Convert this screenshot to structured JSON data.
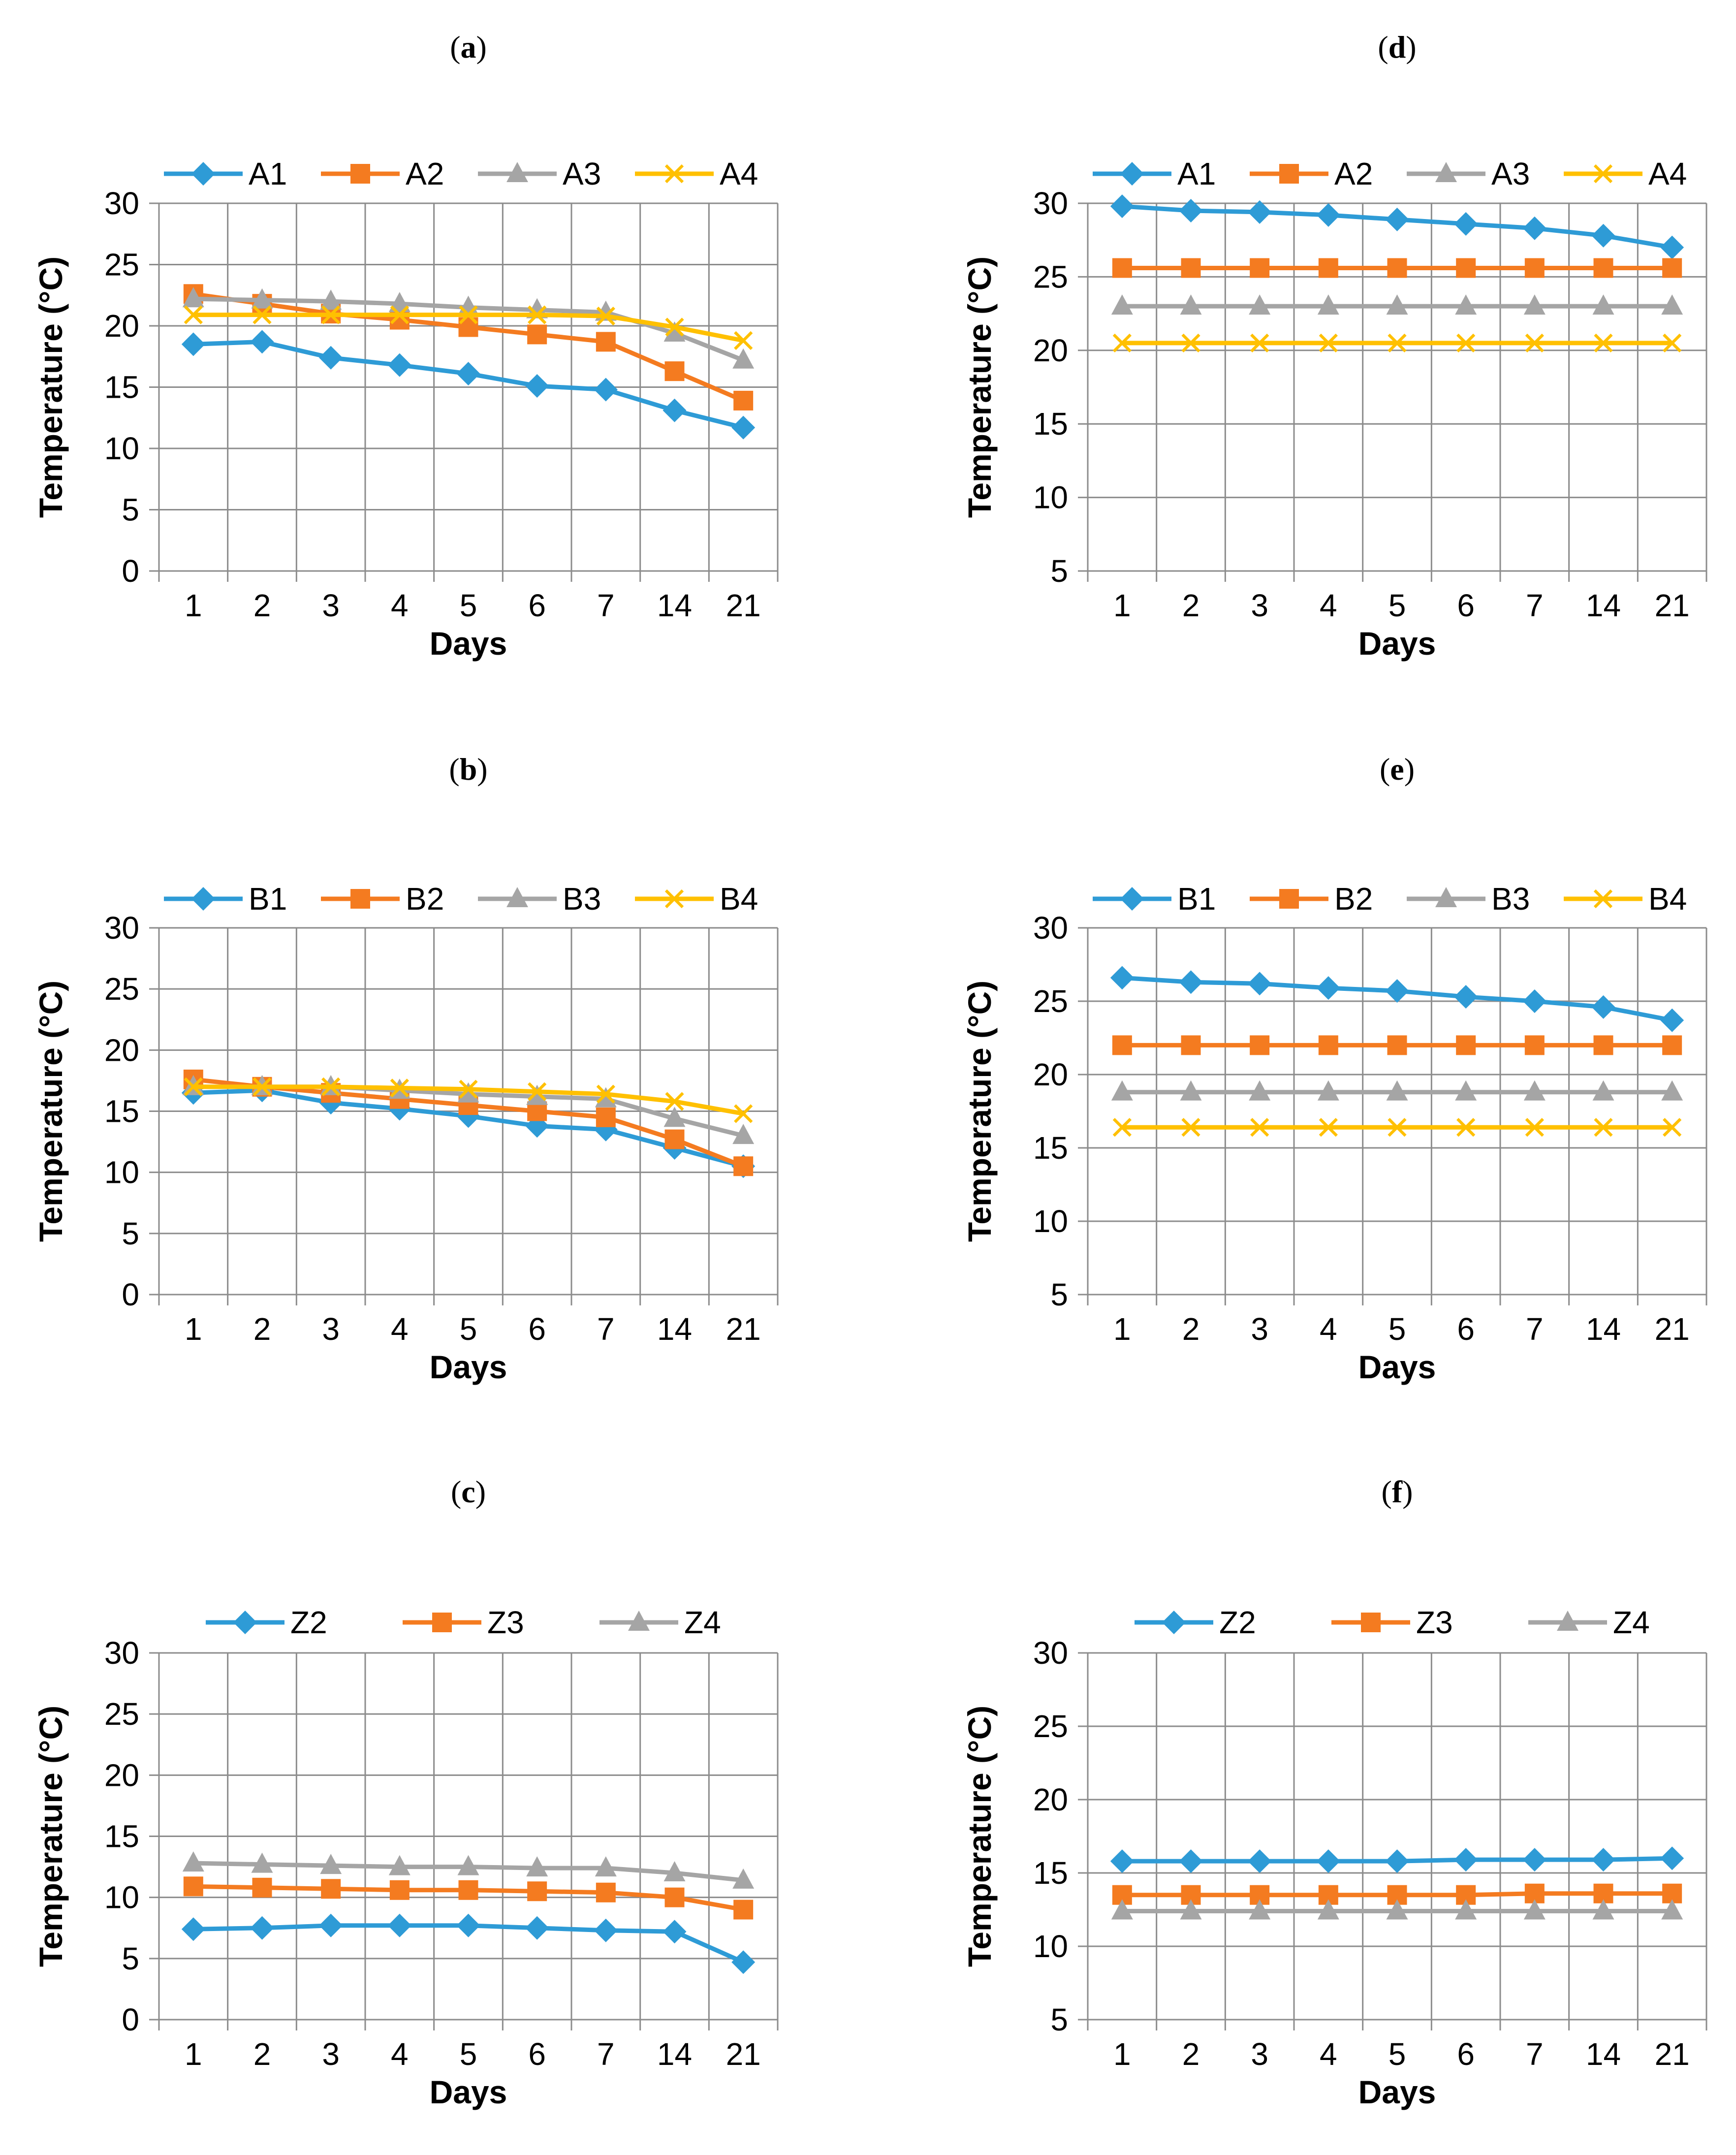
{
  "chart_data": [
    {
      "id": "a",
      "type": "line",
      "panel_label": "a",
      "categories": [
        "1",
        "2",
        "3",
        "4",
        "5",
        "6",
        "7",
        "14",
        "21"
      ],
      "series": [
        {
          "name": "A1",
          "marker": "diamond",
          "color": "#2e9bd6",
          "values": [
            18.5,
            18.7,
            17.4,
            16.8,
            16.1,
            15.1,
            14.8,
            13.1,
            11.7
          ]
        },
        {
          "name": "A2",
          "marker": "square",
          "color": "#f47b20",
          "values": [
            22.6,
            21.8,
            21.0,
            20.5,
            19.9,
            19.3,
            18.7,
            16.3,
            13.9
          ]
        },
        {
          "name": "A3",
          "marker": "triangle",
          "color": "#a5a5a5",
          "values": [
            22.2,
            22.1,
            22.0,
            21.8,
            21.5,
            21.3,
            21.1,
            19.4,
            17.2
          ]
        },
        {
          "name": "A4",
          "marker": "x",
          "color": "#ffc000",
          "values": [
            20.9,
            20.9,
            20.9,
            20.9,
            20.9,
            20.9,
            20.8,
            19.9,
            18.8
          ]
        }
      ],
      "xlabel": "Days",
      "ylabel": "Temperature (°C)",
      "ylim": [
        0,
        30
      ],
      "yticks": [
        0,
        5,
        10,
        15,
        20,
        25,
        30
      ],
      "grid": true,
      "legend": "top"
    },
    {
      "id": "b",
      "type": "line",
      "panel_label": "b",
      "categories": [
        "1",
        "2",
        "3",
        "4",
        "5",
        "6",
        "7",
        "14",
        "21"
      ],
      "series": [
        {
          "name": "B1",
          "marker": "diamond",
          "color": "#2e9bd6",
          "values": [
            16.5,
            16.7,
            15.7,
            15.2,
            14.6,
            13.8,
            13.5,
            12.0,
            10.5
          ]
        },
        {
          "name": "B2",
          "marker": "square",
          "color": "#f47b20",
          "values": [
            17.6,
            17.0,
            16.5,
            16.0,
            15.5,
            15.0,
            14.5,
            12.7,
            10.5
          ]
        },
        {
          "name": "B3",
          "marker": "triangle",
          "color": "#a5a5a5",
          "values": [
            17.0,
            17.0,
            17.0,
            16.7,
            16.4,
            16.2,
            16.0,
            14.4,
            13.0
          ]
        },
        {
          "name": "B4",
          "marker": "x",
          "color": "#ffc000",
          "values": [
            17.0,
            17.0,
            17.0,
            16.9,
            16.8,
            16.6,
            16.4,
            15.8,
            14.8
          ]
        }
      ],
      "xlabel": "Days",
      "ylabel": "Temperature (°C)",
      "ylim": [
        0,
        30
      ],
      "yticks": [
        0,
        5,
        10,
        15,
        20,
        25,
        30
      ],
      "grid": true,
      "legend": "top"
    },
    {
      "id": "c",
      "type": "line",
      "panel_label": "c",
      "categories": [
        "1",
        "2",
        "3",
        "4",
        "5",
        "6",
        "7",
        "14",
        "21"
      ],
      "series": [
        {
          "name": "Z2",
          "marker": "diamond",
          "color": "#2e9bd6",
          "values": [
            7.4,
            7.5,
            7.7,
            7.7,
            7.7,
            7.5,
            7.3,
            7.2,
            4.7
          ]
        },
        {
          "name": "Z3",
          "marker": "square",
          "color": "#f47b20",
          "values": [
            10.9,
            10.8,
            10.7,
            10.6,
            10.6,
            10.5,
            10.4,
            10.0,
            9.0
          ]
        },
        {
          "name": "Z4",
          "marker": "triangle",
          "color": "#a5a5a5",
          "values": [
            12.8,
            12.7,
            12.6,
            12.5,
            12.5,
            12.4,
            12.4,
            12.0,
            11.4
          ]
        }
      ],
      "xlabel": "Days",
      "ylabel": "Temperature (°C)",
      "ylim": [
        0,
        30
      ],
      "yticks": [
        0,
        5,
        10,
        15,
        20,
        25,
        30
      ],
      "grid": true,
      "legend": "top"
    },
    {
      "id": "d",
      "type": "line",
      "panel_label": "d",
      "categories": [
        "1",
        "2",
        "3",
        "4",
        "5",
        "6",
        "7",
        "14",
        "21"
      ],
      "series": [
        {
          "name": "A1",
          "marker": "diamond",
          "color": "#2e9bd6",
          "values": [
            29.8,
            29.5,
            29.4,
            29.2,
            28.9,
            28.6,
            28.3,
            27.8,
            27.0
          ]
        },
        {
          "name": "A2",
          "marker": "square",
          "color": "#f47b20",
          "values": [
            25.6,
            25.6,
            25.6,
            25.6,
            25.6,
            25.6,
            25.6,
            25.6,
            25.6
          ]
        },
        {
          "name": "A3",
          "marker": "triangle",
          "color": "#a5a5a5",
          "values": [
            23.0,
            23.0,
            23.0,
            23.0,
            23.0,
            23.0,
            23.0,
            23.0,
            23.0
          ]
        },
        {
          "name": "A4",
          "marker": "x",
          "color": "#ffc000",
          "values": [
            20.5,
            20.5,
            20.5,
            20.5,
            20.5,
            20.5,
            20.5,
            20.5,
            20.5
          ]
        }
      ],
      "xlabel": "Days",
      "ylabel": "Temperature (°C)",
      "ylim": [
        5,
        30
      ],
      "yticks": [
        5,
        10,
        15,
        20,
        25,
        30
      ],
      "grid": true,
      "legend": "top"
    },
    {
      "id": "e",
      "type": "line",
      "panel_label": "e",
      "categories": [
        "1",
        "2",
        "3",
        "4",
        "5",
        "6",
        "7",
        "14",
        "21"
      ],
      "series": [
        {
          "name": "B1",
          "marker": "diamond",
          "color": "#2e9bd6",
          "values": [
            26.6,
            26.3,
            26.2,
            25.9,
            25.7,
            25.3,
            25.0,
            24.6,
            23.7
          ]
        },
        {
          "name": "B2",
          "marker": "square",
          "color": "#f47b20",
          "values": [
            22.0,
            22.0,
            22.0,
            22.0,
            22.0,
            22.0,
            22.0,
            22.0,
            22.0
          ]
        },
        {
          "name": "B3",
          "marker": "triangle",
          "color": "#a5a5a5",
          "values": [
            18.8,
            18.8,
            18.8,
            18.8,
            18.8,
            18.8,
            18.8,
            18.8,
            18.8
          ]
        },
        {
          "name": "B4",
          "marker": "x",
          "color": "#ffc000",
          "values": [
            16.4,
            16.4,
            16.4,
            16.4,
            16.4,
            16.4,
            16.4,
            16.4,
            16.4
          ]
        }
      ],
      "xlabel": "Days",
      "ylabel": "Temperature (°C)",
      "ylim": [
        5,
        30
      ],
      "yticks": [
        5,
        10,
        15,
        20,
        25,
        30
      ],
      "grid": true,
      "legend": "top"
    },
    {
      "id": "f",
      "type": "line",
      "panel_label": "f",
      "categories": [
        "1",
        "2",
        "3",
        "4",
        "5",
        "6",
        "7",
        "14",
        "21"
      ],
      "series": [
        {
          "name": "Z2",
          "marker": "diamond",
          "color": "#2e9bd6",
          "values": [
            15.8,
            15.8,
            15.8,
            15.8,
            15.8,
            15.9,
            15.9,
            15.9,
            16.0
          ]
        },
        {
          "name": "Z3",
          "marker": "square",
          "color": "#f47b20",
          "values": [
            13.5,
            13.5,
            13.5,
            13.5,
            13.5,
            13.5,
            13.6,
            13.6,
            13.6
          ]
        },
        {
          "name": "Z4",
          "marker": "triangle",
          "color": "#a5a5a5",
          "values": [
            12.4,
            12.4,
            12.4,
            12.4,
            12.4,
            12.4,
            12.4,
            12.4,
            12.4
          ]
        }
      ],
      "xlabel": "Days",
      "ylabel": "Temperature (°C)",
      "ylim": [
        5,
        30
      ],
      "yticks": [
        5,
        10,
        15,
        20,
        25,
        30
      ],
      "grid": true,
      "legend": "top"
    }
  ]
}
